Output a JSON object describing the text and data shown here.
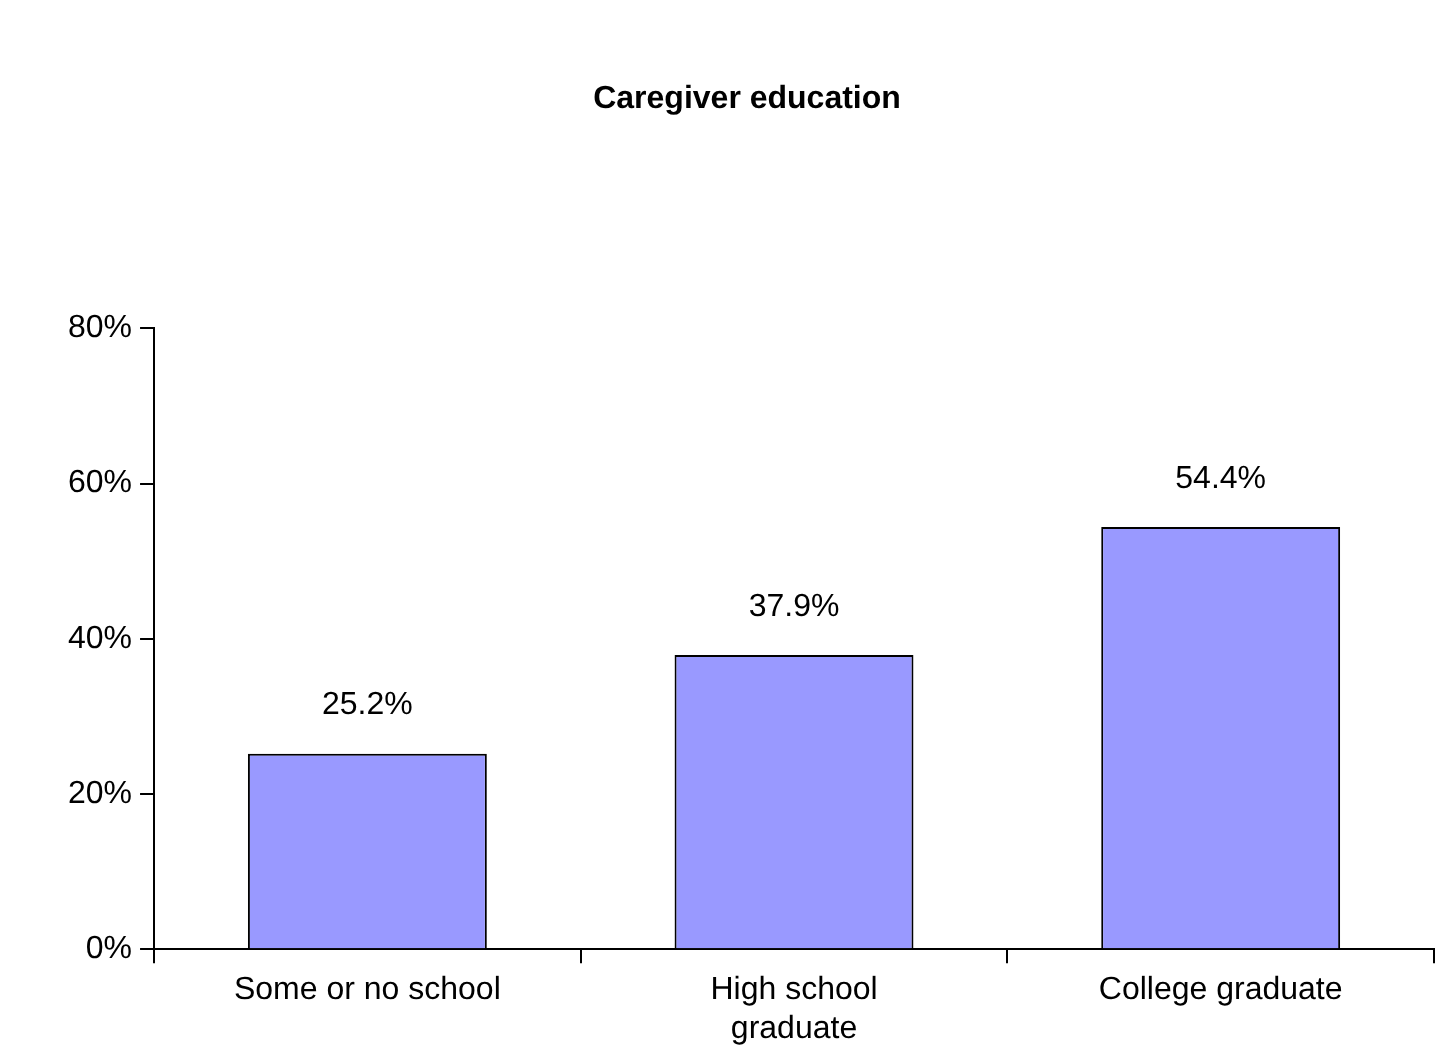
{
  "chart_data": {
    "type": "bar",
    "title": "Caregiver education",
    "categories": [
      "Some or no school",
      "High school graduate",
      "College graduate"
    ],
    "values": [
      25.2,
      37.9,
      54.4
    ],
    "color": "#9999ff",
    "value_labels": [
      "25.2%",
      "37.9%",
      "54.4%"
    ],
    "ylim": [
      0,
      80
    ],
    "yticks": [
      {
        "value": 0,
        "label": "0%"
      },
      {
        "value": 20,
        "label": "20%"
      },
      {
        "value": 40,
        "label": "40%"
      },
      {
        "value": 60,
        "label": "60%"
      },
      {
        "value": 80,
        "label": "80%"
      }
    ],
    "grid": false,
    "legend": false
  }
}
